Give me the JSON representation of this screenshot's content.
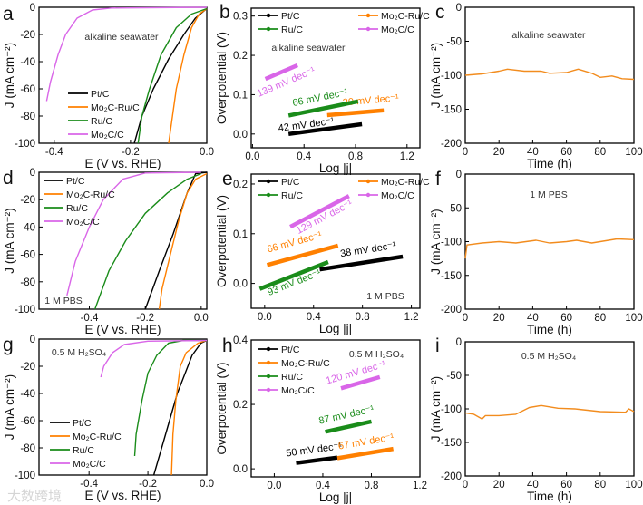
{
  "figure": {
    "watermark": "大数跨境"
  },
  "colors": {
    "Pt/C": "#000000",
    "Mo₂C-Ru/C": "#ff8000",
    "Ru/C": "#1a8c1a",
    "Mo₂C/C": "#d966e8",
    "stability": "#f28c1e"
  },
  "chart_data": [
    {
      "panel": "a",
      "type": "line",
      "electrolyte": "alkaline seawater",
      "xlabel": "E (V vs. RHE)",
      "ylabel": "J (mA cm⁻²)",
      "xlim": [
        -0.44,
        0.0
      ],
      "ylim": [
        -100,
        0
      ],
      "xticks": [
        -0.4,
        -0.2,
        0.0
      ],
      "yticks": [
        0,
        -20,
        -40,
        -60,
        -80,
        -100
      ],
      "legend": "bottom-left",
      "series": [
        {
          "name": "Pt/C",
          "points": [
            [
              0,
              -1
            ],
            [
              -0.03,
              -8
            ],
            [
              -0.06,
              -20
            ],
            [
              -0.1,
              -38
            ],
            [
              -0.14,
              -60
            ],
            [
              -0.17,
              -80
            ],
            [
              -0.19,
              -100
            ]
          ]
        },
        {
          "name": "Mo₂C-Ru/C",
          "points": [
            [
              0,
              -1
            ],
            [
              -0.02,
              -5
            ],
            [
              -0.04,
              -15
            ],
            [
              -0.06,
              -35
            ],
            [
              -0.08,
              -60
            ],
            [
              -0.09,
              -80
            ],
            [
              -0.1,
              -100
            ]
          ]
        },
        {
          "name": "Ru/C",
          "points": [
            [
              0,
              -1
            ],
            [
              -0.04,
              -5
            ],
            [
              -0.08,
              -15
            ],
            [
              -0.12,
              -35
            ],
            [
              -0.15,
              -60
            ],
            [
              -0.17,
              -80
            ],
            [
              -0.18,
              -100
            ]
          ]
        },
        {
          "name": "Mo₂C/C",
          "points": [
            [
              0,
              0
            ],
            [
              -0.25,
              -0.5
            ],
            [
              -0.3,
              -2
            ],
            [
              -0.34,
              -8
            ],
            [
              -0.37,
              -20
            ],
            [
              -0.39,
              -35
            ],
            [
              -0.41,
              -55
            ],
            [
              -0.42,
              -69
            ]
          ]
        }
      ]
    },
    {
      "panel": "b",
      "type": "line",
      "electrolyte": "alkaline seawater",
      "xlabel": "Log |j|",
      "ylabel": "Overpotential (V)",
      "xlim": [
        -0.01,
        1.3
      ],
      "ylim": [
        -0.035,
        0.32
      ],
      "xticks": [
        0.0,
        0.4,
        0.8,
        1.2
      ],
      "yticks": [
        0.0,
        0.1,
        0.2,
        0.3
      ],
      "legend": "top",
      "series": [
        {
          "name": "Pt/C",
          "points": [
            [
              0.28,
              0.0
            ],
            [
              0.85,
              0.025
            ]
          ],
          "tafel_slope": "42 mV dec⁻¹",
          "label_at": [
            0.42,
            0.016
          ]
        },
        {
          "name": "Mo₂C-Ru/C",
          "points": [
            [
              0.58,
              0.048
            ],
            [
              1.02,
              0.06
            ]
          ],
          "tafel_slope": "30 mV dec⁻¹",
          "label_at": [
            0.92,
            0.078
          ]
        },
        {
          "name": "Ru/C",
          "points": [
            [
              0.28,
              0.047
            ],
            [
              0.82,
              0.083
            ]
          ],
          "tafel_slope": "66 mV dec⁻¹",
          "label_at": [
            0.53,
            0.085
          ]
        },
        {
          "name": "Mo₂C/C",
          "points": [
            [
              0.1,
              0.14
            ],
            [
              0.35,
              0.175
            ]
          ],
          "tafel_slope": "139 mV dec⁻¹",
          "label_at": [
            0.27,
            0.125
          ]
        }
      ]
    },
    {
      "panel": "c",
      "type": "line",
      "electrolyte": "alkaline seawater",
      "xlabel": "Time (h)",
      "ylabel": "J (mA cm⁻²)",
      "xlim": [
        0,
        100
      ],
      "ylim": [
        -200,
        0
      ],
      "xticks": [
        0,
        20,
        40,
        60,
        80,
        100
      ],
      "yticks": [
        0,
        -50,
        -100,
        -150,
        -200
      ],
      "series": [
        {
          "name": "stability",
          "points": [
            [
              0,
              -100
            ],
            [
              10,
              -98
            ],
            [
              20,
              -94
            ],
            [
              25,
              -91
            ],
            [
              35,
              -94
            ],
            [
              45,
              -94
            ],
            [
              50,
              -97
            ],
            [
              60,
              -96
            ],
            [
              67,
              -91
            ],
            [
              75,
              -97
            ],
            [
              80,
              -103
            ],
            [
              87,
              -101
            ],
            [
              93,
              -105
            ],
            [
              100,
              -106
            ]
          ]
        }
      ]
    },
    {
      "panel": "d",
      "type": "line",
      "electrolyte": "1 M PBS",
      "xlabel": "E (V vs. RHE)",
      "ylabel": "J (mA cm⁻²)",
      "xlim": [
        -0.58,
        0.02
      ],
      "ylim": [
        -100,
        0
      ],
      "xticks": [
        -0.4,
        -0.2,
        0.0
      ],
      "yticks": [
        0,
        -20,
        -40,
        -60,
        -80,
        -100
      ],
      "legend": "top-left",
      "series": [
        {
          "name": "Pt/C",
          "points": [
            [
              0.02,
              0
            ],
            [
              -0.02,
              -1
            ],
            [
              -0.05,
              -15
            ],
            [
              -0.1,
              -45
            ],
            [
              -0.15,
              -72
            ],
            [
              -0.2,
              -100
            ]
          ]
        },
        {
          "name": "Mo₂C-Ru/C",
          "points": [
            [
              0.02,
              -1
            ],
            [
              -0.02,
              -5
            ],
            [
              -0.05,
              -15
            ],
            [
              -0.08,
              -35
            ],
            [
              -0.11,
              -60
            ],
            [
              -0.14,
              -85
            ],
            [
              -0.15,
              -100
            ]
          ]
        },
        {
          "name": "Ru/C",
          "points": [
            [
              0,
              -1
            ],
            [
              -0.05,
              -5
            ],
            [
              -0.12,
              -15
            ],
            [
              -0.2,
              -30
            ],
            [
              -0.27,
              -50
            ],
            [
              -0.33,
              -72
            ],
            [
              -0.38,
              -100
            ]
          ]
        },
        {
          "name": "Mo₂C/C",
          "points": [
            [
              0,
              0
            ],
            [
              -0.2,
              -0.5
            ],
            [
              -0.28,
              -5
            ],
            [
              -0.35,
              -20
            ],
            [
              -0.4,
              -40
            ],
            [
              -0.45,
              -65
            ],
            [
              -0.48,
              -90
            ]
          ]
        }
      ]
    },
    {
      "panel": "e",
      "type": "line",
      "electrolyte": "1 M PBS",
      "xlabel": "Log |j|",
      "ylabel": "Overpotential (V)",
      "xlim": [
        -0.11,
        1.27
      ],
      "ylim": [
        -0.05,
        0.22
      ],
      "xticks": [
        0.0,
        0.4,
        0.8,
        1.2
      ],
      "yticks": [
        0.0,
        0.1,
        0.2
      ],
      "legend": "top",
      "series": [
        {
          "name": "Pt/C",
          "points": [
            [
              0.45,
              0.028
            ],
            [
              1.13,
              0.054
            ]
          ],
          "tafel_slope": "38 mV dec⁻¹",
          "label_at": [
            0.85,
            0.062
          ]
        },
        {
          "name": "Mo₂C-Ru/C",
          "points": [
            [
              0.02,
              0.037
            ],
            [
              0.6,
              0.076
            ]
          ],
          "tafel_slope": "66 mV dec⁻¹",
          "label_at": [
            0.25,
            0.077
          ]
        },
        {
          "name": "Ru/C",
          "points": [
            [
              -0.04,
              -0.011
            ],
            [
              0.52,
              0.043
            ]
          ],
          "tafel_slope": "93 mV dec⁻¹",
          "label_at": [
            0.25,
            -0.004
          ]
        },
        {
          "name": "Mo₂C/C",
          "points": [
            [
              0.21,
              0.114
            ],
            [
              0.69,
              0.176
            ]
          ],
          "tafel_slope": "129 mV dec⁻¹",
          "label_at": [
            0.5,
            0.128
          ]
        }
      ]
    },
    {
      "panel": "f",
      "type": "line",
      "electrolyte": "1 M PBS",
      "xlabel": "Time (h)",
      "ylabel": "J (mA cm⁻²)",
      "xlim": [
        0,
        100
      ],
      "ylim": [
        -200,
        0
      ],
      "xticks": [
        0,
        20,
        40,
        60,
        80,
        100
      ],
      "yticks": [
        0,
        -50,
        -100,
        -150,
        -200
      ],
      "series": [
        {
          "name": "stability",
          "points": [
            [
              0,
              -125
            ],
            [
              1,
              -105
            ],
            [
              10,
              -102
            ],
            [
              20,
              -100
            ],
            [
              30,
              -102
            ],
            [
              42,
              -98
            ],
            [
              50,
              -102
            ],
            [
              60,
              -100
            ],
            [
              66,
              -98
            ],
            [
              75,
              -102
            ],
            [
              90,
              -96
            ],
            [
              100,
              -97
            ]
          ]
        }
      ]
    },
    {
      "panel": "g",
      "type": "line",
      "electrolyte": "0.5 M H₂SO₄",
      "xlabel": "E (V vs. RHE)",
      "ylabel": "J (mA cm⁻²)",
      "xlim": [
        -0.57,
        0.0
      ],
      "ylim": [
        -100,
        0
      ],
      "xticks": [
        -0.4,
        -0.2,
        0.0
      ],
      "yticks": [
        0,
        -20,
        -40,
        -60,
        -80,
        -100
      ],
      "legend": "bottom-left",
      "series": [
        {
          "name": "Pt/C",
          "points": [
            [
              0,
              -1
            ],
            [
              -0.02,
              -3
            ],
            [
              -0.05,
              -12
            ],
            [
              -0.1,
              -40
            ],
            [
              -0.14,
              -70
            ],
            [
              -0.18,
              -100
            ]
          ]
        },
        {
          "name": "Mo₂C-Ru/C",
          "points": [
            [
              0,
              -1
            ],
            [
              -0.03,
              -3
            ],
            [
              -0.07,
              -10
            ],
            [
              -0.09,
              -20
            ],
            [
              -0.105,
              -45
            ],
            [
              -0.115,
              -70
            ],
            [
              -0.12,
              -100
            ]
          ]
        },
        {
          "name": "Ru/C",
          "points": [
            [
              0,
              -1
            ],
            [
              -0.08,
              -1
            ],
            [
              -0.13,
              -3
            ],
            [
              -0.17,
              -12
            ],
            [
              -0.2,
              -25
            ],
            [
              -0.22,
              -45
            ],
            [
              -0.24,
              -70
            ],
            [
              -0.245,
              -86
            ]
          ]
        },
        {
          "name": "Mo₂C/C",
          "points": [
            [
              0,
              -1
            ],
            [
              -0.2,
              -1.5
            ],
            [
              -0.28,
              -4
            ],
            [
              -0.32,
              -10
            ],
            [
              -0.35,
              -20
            ],
            [
              -0.36,
              -28
            ]
          ]
        }
      ]
    },
    {
      "panel": "h",
      "type": "line",
      "electrolyte": "0.5 M H₂SO₄",
      "xlabel": "Log |j|",
      "ylabel": "Overpotential (V)",
      "xlim": [
        -0.19,
        1.2
      ],
      "ylim": [
        -0.025,
        0.4
      ],
      "xticks": [
        0.0,
        0.4,
        0.8,
        1.2
      ],
      "yticks": [
        0.0,
        0.2,
        0.4
      ],
      "legend": "top-left",
      "series": [
        {
          "name": "Pt/C",
          "points": [
            [
              0.18,
              0.018
            ],
            [
              0.52,
              0.035
            ]
          ],
          "tafel_slope": "50 mV dec⁻¹",
          "label_at": [
            0.33,
            0.05
          ]
        },
        {
          "name": "Mo₂C-Ru/C",
          "points": [
            [
              0.52,
              0.033
            ],
            [
              0.98,
              0.062
            ]
          ],
          "tafel_slope": "67 mV dec⁻¹",
          "label_at": [
            0.76,
            0.075
          ]
        },
        {
          "name": "Ru/C",
          "points": [
            [
              0.42,
              0.115
            ],
            [
              0.8,
              0.147
            ]
          ],
          "tafel_slope": "87 mV dec⁻¹",
          "label_at": [
            0.6,
            0.158
          ]
        },
        {
          "name": "Mo₂C/C",
          "points": [
            [
              0.55,
              0.25
            ],
            [
              0.87,
              0.285
            ]
          ],
          "tafel_slope": "120 mV dec⁻¹",
          "label_at": [
            0.68,
            0.29
          ]
        }
      ]
    },
    {
      "panel": "i",
      "type": "line",
      "electrolyte": "0.5 M H₂SO₄",
      "xlabel": "Time (h)",
      "ylabel": "J (mA cm⁻²)",
      "xlim": [
        0,
        100
      ],
      "ylim": [
        -200,
        0
      ],
      "xticks": [
        0,
        20,
        40,
        60,
        80,
        100
      ],
      "yticks": [
        0,
        -50,
        -100,
        -150,
        -200
      ],
      "series": [
        {
          "name": "stability",
          "points": [
            [
              0,
              -106
            ],
            [
              5,
              -108
            ],
            [
              10,
              -115
            ],
            [
              12,
              -110
            ],
            [
              20,
              -110
            ],
            [
              30,
              -108
            ],
            [
              38,
              -98
            ],
            [
              45,
              -95
            ],
            [
              55,
              -99
            ],
            [
              65,
              -100
            ],
            [
              80,
              -104
            ],
            [
              95,
              -105
            ],
            [
              97,
              -100
            ],
            [
              100,
              -104
            ]
          ]
        }
      ]
    }
  ]
}
